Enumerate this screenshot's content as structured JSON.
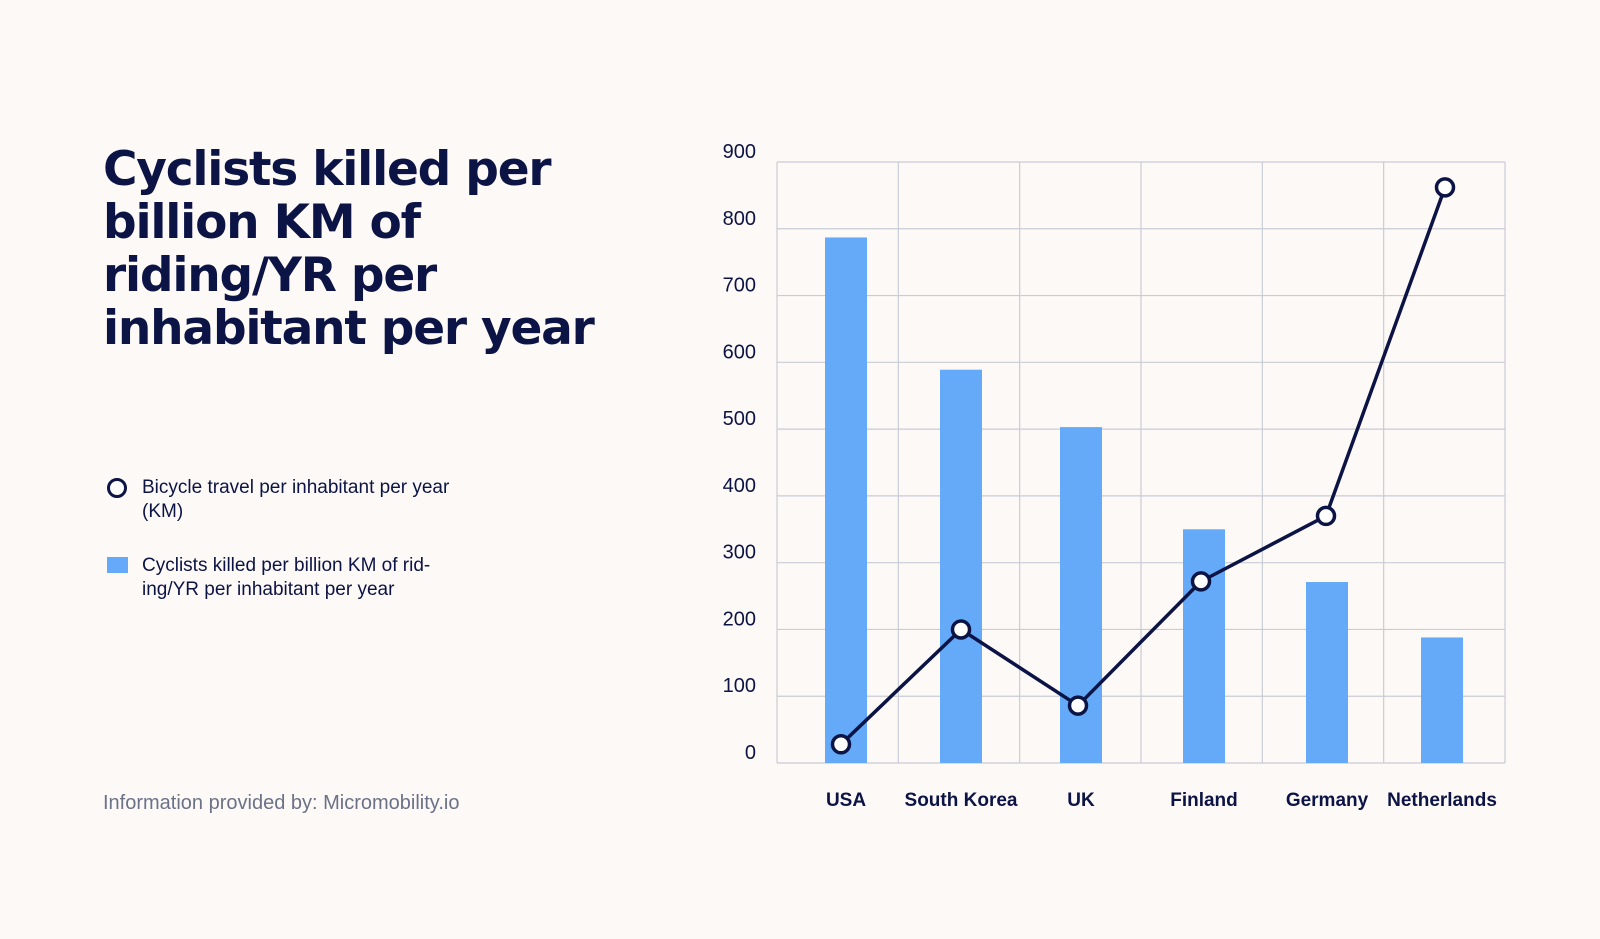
{
  "title": "Cyclists killed per billion KM of riding/YR per inhabitant per year",
  "legend": {
    "line_label": "Bicycle travel per inhabitant per year (KM)",
    "bar_label": "Cyclists killed per billion KM of rid-ing/YR per inhabitant per year"
  },
  "source": "Information provided by: Micromobility.io",
  "colors": {
    "background": "#fdf9f6",
    "text": "#0c1445",
    "bar": "#64aaf8",
    "line": "#0c1445",
    "grid": "#c9ccd6"
  },
  "chart_data": {
    "type": "bar",
    "categories": [
      "USA",
      "South Korea",
      "UK",
      "Finland",
      "Germany",
      "Netherlands"
    ],
    "series": [
      {
        "name": "Cyclists killed per billion KM of rid-ing/YR per inhabitant per year",
        "type": "bar",
        "values": [
          787,
          589,
          503,
          350,
          271,
          188
        ]
      },
      {
        "name": "Bicycle travel per inhabitant per year (KM)",
        "type": "line",
        "values": [
          28,
          200,
          86,
          272,
          370,
          862
        ]
      }
    ],
    "yticks": [
      0,
      100,
      200,
      300,
      400,
      500,
      600,
      700,
      800,
      900
    ],
    "ylim": [
      0,
      900
    ],
    "grid": true,
    "legend_position": "left"
  }
}
